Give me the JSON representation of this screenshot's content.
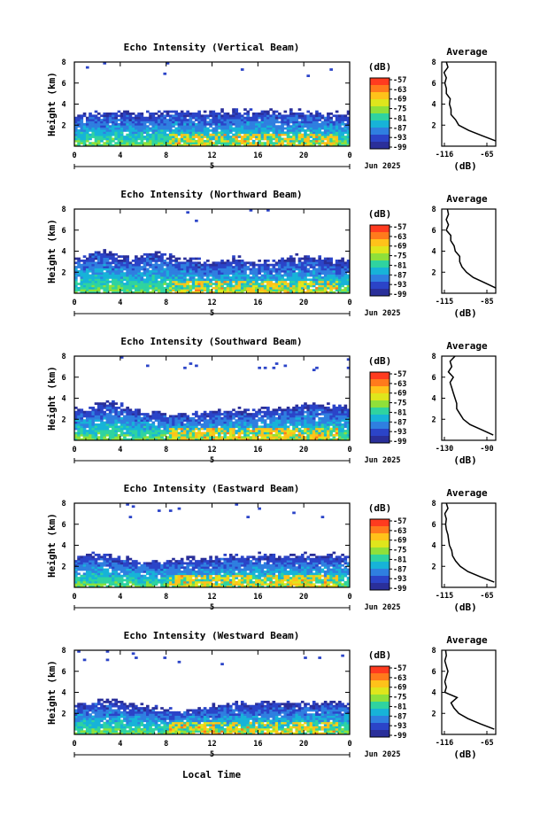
{
  "figure": {
    "xlabel": "Local Time",
    "date_label": "Jun 2025",
    "day_label": "5",
    "avg_title": "Average",
    "colorbar_unit": "(dB)",
    "avg_xlabel": "(dB)",
    "ylabel": "Height (km)"
  },
  "chart_data": [
    {
      "type": "heatmap",
      "beam": "Vertical",
      "title": "Echo Intensity (Vertical Beam)",
      "xlabel": "Local Time",
      "ylabel": "Height (km)",
      "x_ticks": [
        "0",
        "4",
        "8",
        "12",
        "16",
        "20",
        "0"
      ],
      "y_ticks": [
        "2",
        "4",
        "6",
        "8"
      ],
      "xlim": [
        0,
        24
      ],
      "ylim": [
        0,
        8
      ],
      "colorbar": {
        "ticks": [
          "-57",
          "-63",
          "-69",
          "-75",
          "-81",
          "-87",
          "-93",
          "-99"
        ],
        "range": [
          -102,
          -57
        ]
      },
      "echo_top_km": [
        3.0,
        3.1,
        3.2,
        3.3,
        3.2,
        3.1,
        3.0,
        3.1,
        3.3,
        3.4,
        3.3,
        3.2,
        3.2,
        3.3,
        3.3,
        3.3,
        3.4,
        3.3,
        3.2,
        3.3,
        3.3,
        3.2,
        3.1,
        3.1,
        3.2
      ],
      "average": {
        "title": "Average",
        "xlabel": "(dB)",
        "x_ticks": [
          "-116",
          "-65"
        ],
        "y_ticks": [
          "2",
          "4",
          "6",
          "8"
        ],
        "xlim": [
          -130,
          -60
        ],
        "height_km": [
          0.5,
          1,
          1.5,
          2,
          2.5,
          3,
          3.5,
          4,
          4.5,
          5,
          5.5,
          6,
          6.5,
          7,
          7.5,
          8
        ],
        "value_db": [
          -60,
          -78,
          -95,
          -108,
          -112,
          -118,
          -118,
          -120,
          -119,
          -124,
          -124,
          -126,
          -124,
          -127,
          -122,
          -124
        ]
      }
    },
    {
      "type": "heatmap",
      "beam": "Northward",
      "title": "Echo Intensity (Northward Beam)",
      "xlabel": "Local Time",
      "ylabel": "Height (km)",
      "x_ticks": [
        "0",
        "4",
        "8",
        "12",
        "16",
        "20",
        "0"
      ],
      "y_ticks": [
        "2",
        "4",
        "6",
        "8"
      ],
      "xlim": [
        0,
        24
      ],
      "ylim": [
        0,
        8
      ],
      "colorbar": {
        "ticks": [
          "-57",
          "-63",
          "-69",
          "-75",
          "-81",
          "-87",
          "-93",
          "-99"
        ],
        "range": [
          -102,
          -57
        ]
      },
      "echo_top_km": [
        3.3,
        3.6,
        4.2,
        3.8,
        3.5,
        3.4,
        3.7,
        4.0,
        3.6,
        3.3,
        3.2,
        3.0,
        2.9,
        3.1,
        3.3,
        3.1,
        3.0,
        3.1,
        3.2,
        3.4,
        3.5,
        3.3,
        3.2,
        3.1,
        3.2
      ],
      "average": {
        "title": "Average",
        "xlabel": "(dB)",
        "x_ticks": [
          "-115",
          "-85"
        ],
        "y_ticks": [
          "2",
          "4",
          "6",
          "8"
        ],
        "xlim": [
          -128,
          -80
        ],
        "height_km": [
          0.5,
          1,
          1.5,
          2,
          2.5,
          3,
          3.5,
          4,
          4.5,
          5,
          5.5,
          6,
          6.5,
          7,
          7.5,
          8
        ],
        "value_db": [
          -80,
          -90,
          -100,
          -106,
          -110,
          -112,
          -112,
          -116,
          -117,
          -120,
          -120,
          -124,
          -122,
          -124,
          -122,
          -123
        ]
      }
    },
    {
      "type": "heatmap",
      "beam": "Southward",
      "title": "Echo Intensity (Southward Beam)",
      "xlabel": "Local Time",
      "ylabel": "Height (km)",
      "x_ticks": [
        "0",
        "4",
        "8",
        "12",
        "16",
        "20",
        "0"
      ],
      "y_ticks": [
        "2",
        "4",
        "6",
        "8"
      ],
      "xlim": [
        0,
        24
      ],
      "ylim": [
        0,
        8
      ],
      "colorbar": {
        "ticks": [
          "-57",
          "-63",
          "-69",
          "-75",
          "-81",
          "-87",
          "-93",
          "-99"
        ],
        "range": [
          -102,
          -57
        ]
      },
      "echo_top_km": [
        2.9,
        3.0,
        3.4,
        3.6,
        3.3,
        3.0,
        2.8,
        2.7,
        2.6,
        2.5,
        2.5,
        2.6,
        2.7,
        2.8,
        2.9,
        2.9,
        3.0,
        3.0,
        3.1,
        3.2,
        3.4,
        3.5,
        3.4,
        3.3,
        3.2
      ],
      "average": {
        "title": "Average",
        "xlabel": "(dB)",
        "x_ticks": [
          "-130",
          "-90"
        ],
        "y_ticks": [
          "2",
          "4",
          "6",
          "8"
        ],
        "xlim": [
          -140,
          -75
        ],
        "height_km": [
          0.5,
          1,
          1.5,
          2,
          2.5,
          3,
          3.5,
          4,
          4.5,
          5,
          5.5,
          6,
          6.5,
          7,
          7.5,
          8
        ],
        "value_db": [
          -78,
          -92,
          -106,
          -114,
          -118,
          -122,
          -122,
          -124,
          -126,
          -128,
          -130,
          -126,
          -132,
          -128,
          -130,
          -124
        ]
      }
    },
    {
      "type": "heatmap",
      "beam": "Eastward",
      "title": "Echo Intensity (Eastward Beam)",
      "xlabel": "Local Time",
      "ylabel": "Height (km)",
      "x_ticks": [
        "0",
        "4",
        "8",
        "12",
        "16",
        "20",
        "0"
      ],
      "y_ticks": [
        "2",
        "4",
        "6",
        "8"
      ],
      "xlim": [
        0,
        24
      ],
      "ylim": [
        0,
        8
      ],
      "colorbar": {
        "ticks": [
          "-57",
          "-63",
          "-69",
          "-75",
          "-81",
          "-87",
          "-93",
          "-99"
        ],
        "range": [
          -102,
          -57
        ]
      },
      "echo_top_km": [
        2.9,
        3.1,
        3.2,
        3.0,
        2.8,
        2.6,
        2.4,
        2.4,
        2.5,
        2.6,
        2.7,
        2.8,
        2.9,
        3.0,
        3.0,
        3.0,
        3.1,
        3.0,
        3.0,
        3.0,
        3.1,
        3.0,
        3.0,
        3.1,
        3.0
      ],
      "average": {
        "title": "Average",
        "xlabel": "(dB)",
        "x_ticks": [
          "-115",
          "-65"
        ],
        "y_ticks": [
          "2",
          "4",
          "6",
          "8"
        ],
        "xlim": [
          -130,
          -60
        ],
        "height_km": [
          0.5,
          1,
          1.5,
          2,
          2.5,
          3,
          3.5,
          4,
          4.5,
          5,
          5.5,
          6,
          6.5,
          7,
          7.5,
          8
        ],
        "value_db": [
          -62,
          -80,
          -96,
          -106,
          -112,
          -116,
          -117,
          -120,
          -121,
          -122,
          -124,
          -125,
          -124,
          -126,
          -122,
          -124
        ]
      }
    },
    {
      "type": "heatmap",
      "beam": "Westward",
      "title": "Echo Intensity (Westward Beam)",
      "xlabel": "Local Time",
      "ylabel": "Height (km)",
      "x_ticks": [
        "0",
        "4",
        "8",
        "12",
        "16",
        "20",
        "0"
      ],
      "y_ticks": [
        "2",
        "4",
        "6",
        "8"
      ],
      "xlim": [
        0,
        24
      ],
      "ylim": [
        0,
        8
      ],
      "colorbar": {
        "ticks": [
          "-57",
          "-63",
          "-69",
          "-75",
          "-81",
          "-87",
          "-93",
          "-99"
        ],
        "range": [
          -102,
          -57
        ]
      },
      "echo_top_km": [
        2.9,
        3.1,
        3.2,
        3.1,
        3.0,
        2.8,
        2.6,
        2.5,
        2.4,
        2.4,
        2.5,
        2.6,
        2.7,
        2.8,
        2.9,
        3.0,
        3.1,
        3.0,
        2.9,
        3.0,
        3.0,
        3.0,
        3.1,
        3.1,
        3.0
      ],
      "average": {
        "title": "Average",
        "xlabel": "(dB)",
        "x_ticks": [
          "-116",
          "-65"
        ],
        "y_ticks": [
          "2",
          "4",
          "6",
          "8"
        ],
        "xlim": [
          -130,
          -60
        ],
        "height_km": [
          0.5,
          1,
          1.5,
          2,
          2.5,
          3,
          3.5,
          4,
          4.5,
          5,
          5.5,
          6,
          6.5,
          7,
          7.5,
          8
        ],
        "value_db": [
          -62,
          -80,
          -96,
          -108,
          -114,
          -118,
          -110,
          -126,
          -124,
          -126,
          -124,
          -122,
          -124,
          -126,
          -124,
          -125
        ]
      }
    }
  ]
}
